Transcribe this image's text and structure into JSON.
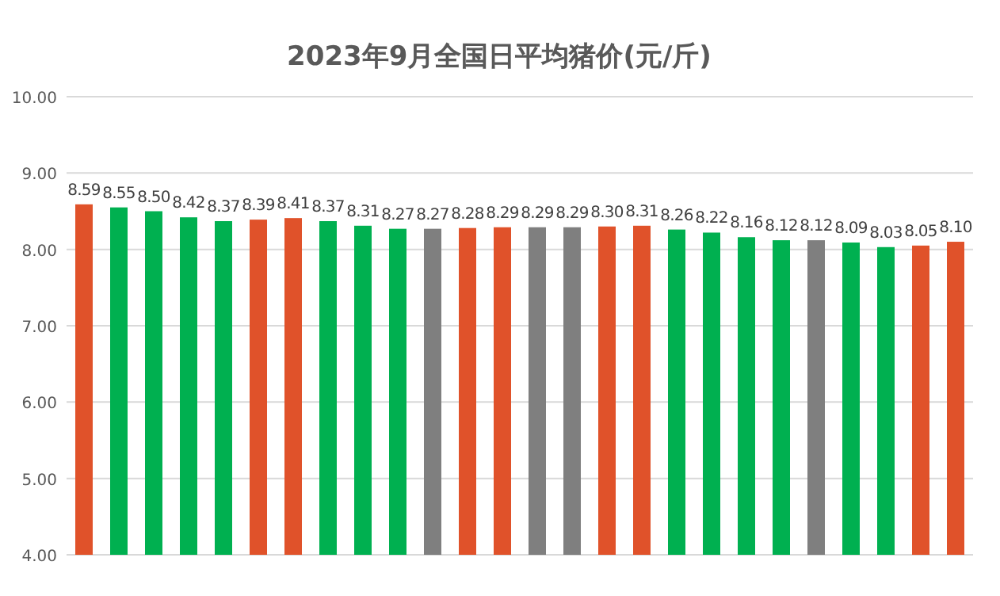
{
  "chart_data": {
    "type": "bar",
    "title": "2023年9月全国日平均猪价(元/斤)",
    "categories": [
      null,
      null,
      null,
      null,
      null,
      null,
      null,
      null,
      null,
      null,
      null,
      null,
      null,
      null,
      null,
      null,
      null,
      null,
      null,
      null,
      null,
      null,
      null,
      null,
      null,
      null
    ],
    "values": [
      8.59,
      8.55,
      8.5,
      8.42,
      8.37,
      8.39,
      8.41,
      8.37,
      8.31,
      8.27,
      8.27,
      8.28,
      8.29,
      8.29,
      8.29,
      8.3,
      8.31,
      8.26,
      8.22,
      8.16,
      8.12,
      8.12,
      8.09,
      8.03,
      8.05,
      8.1
    ],
    "value_labels": [
      "8.59",
      "8.55",
      "8.50",
      "8.42",
      "8.37",
      "8.39",
      "8.41",
      "8.37",
      "8.31",
      "8.27",
      "8.27",
      "8.28",
      "8.29",
      "8.29",
      "8.29",
      "8.30",
      "8.31",
      "8.26",
      "8.22",
      "8.16",
      "8.12",
      "8.12",
      "8.09",
      "8.03",
      "8.05",
      "8.10"
    ],
    "colors": [
      "#e0522a",
      "#00b050",
      "#00b050",
      "#00b050",
      "#00b050",
      "#e0522a",
      "#e0522a",
      "#00b050",
      "#00b050",
      "#00b050",
      "#7f7f7f",
      "#e0522a",
      "#e0522a",
      "#7f7f7f",
      "#7f7f7f",
      "#e0522a",
      "#e0522a",
      "#00b050",
      "#00b050",
      "#00b050",
      "#00b050",
      "#7f7f7f",
      "#00b050",
      "#00b050",
      "#e0522a",
      "#e0522a"
    ],
    "ylim": [
      4,
      10
    ],
    "yticks": [
      {
        "value": 4,
        "label": "4.00"
      },
      {
        "value": 5,
        "label": "5.00"
      },
      {
        "value": 6,
        "label": "6.00"
      },
      {
        "value": 7,
        "label": "7.00"
      },
      {
        "value": 8,
        "label": "8.00"
      },
      {
        "value": 9,
        "label": "9.00"
      },
      {
        "value": 10,
        "label": "10.00"
      }
    ],
    "grid": "y"
  }
}
